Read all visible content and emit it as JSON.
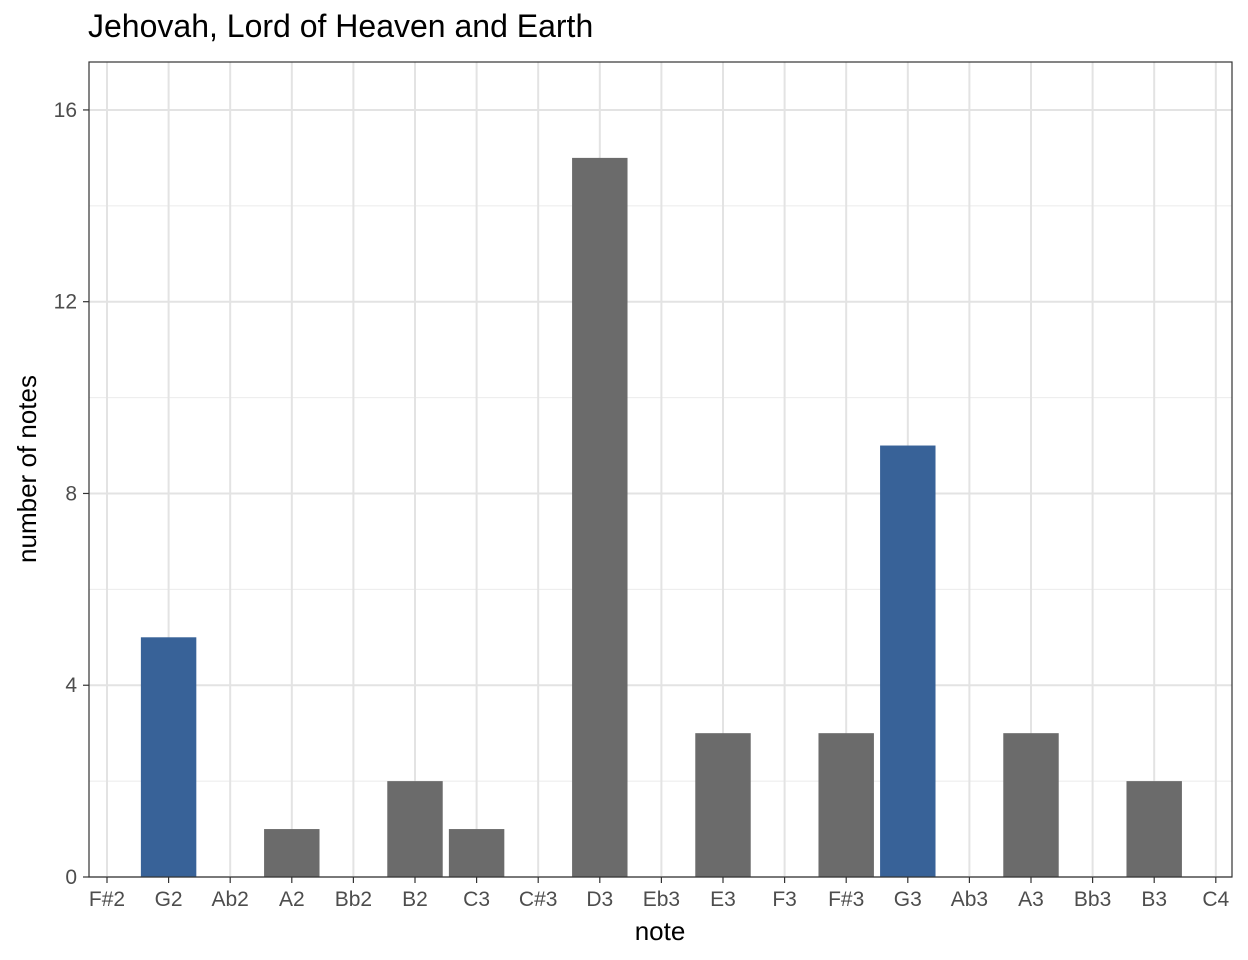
{
  "chart_data": {
    "type": "bar",
    "title": "Jehovah, Lord of Heaven and Earth",
    "xlabel": "note",
    "ylabel": "number of notes",
    "categories": [
      "F#2",
      "G2",
      "Ab2",
      "A2",
      "Bb2",
      "B2",
      "C3",
      "C#3",
      "D3",
      "Eb3",
      "E3",
      "F3",
      "F#3",
      "G3",
      "Ab3",
      "A3",
      "Bb3",
      "B3",
      "C4"
    ],
    "values": [
      0,
      5,
      0,
      1,
      0,
      2,
      1,
      0,
      15,
      0,
      3,
      0,
      3,
      9,
      0,
      3,
      0,
      2,
      0
    ],
    "highlighted": [
      "G2",
      "G3"
    ],
    "colors": {
      "default": "#6b6b6b",
      "highlight": "#386298"
    },
    "yticks": [
      0,
      4,
      8,
      12,
      16
    ],
    "ylim": [
      0,
      17
    ],
    "grid": true,
    "legend": "none"
  }
}
